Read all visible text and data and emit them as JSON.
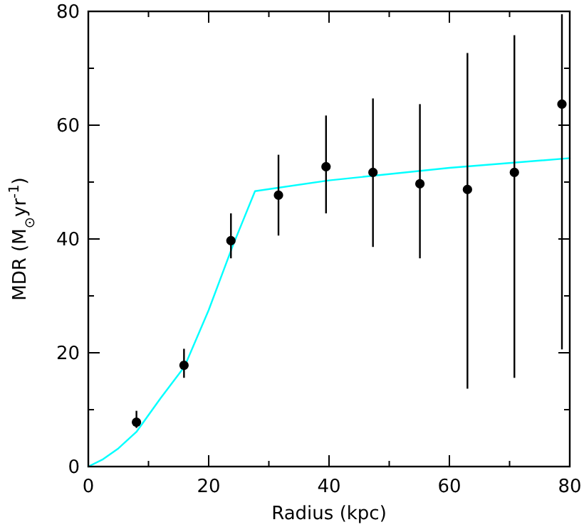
{
  "chart_data": {
    "type": "scatter",
    "xlabel": "Radius (kpc)",
    "ylabel": "MDR (M$_{⊙}$yr$^{-1}$)",
    "xlim": [
      0,
      80
    ],
    "ylim": [
      0,
      80
    ],
    "xticks": [
      0,
      {
        "value": 10,
        "label": null
      },
      20,
      {
        "value": 30,
        "label": null
      },
      40,
      {
        "value": 50,
        "label": null
      },
      60,
      {
        "value": 70,
        "label": null
      },
      80
    ],
    "yticks": [
      0,
      {
        "value": 10,
        "label": null
      },
      20,
      {
        "value": 30,
        "label": null
      },
      40,
      {
        "value": 50,
        "label": null
      },
      60,
      {
        "value": 70,
        "label": null
      },
      80
    ],
    "grid": false,
    "series": [
      {
        "type": "line",
        "color": "#00ffff",
        "x": [
          0,
          2.3,
          5,
          8,
          12,
          16,
          20,
          24,
          27.7,
          40,
          60,
          80
        ],
        "values": [
          0,
          1.2,
          3.2,
          6.1,
          12,
          17.6,
          27.5,
          38.8,
          48.4,
          50.3,
          52.5,
          54.2
        ]
      },
      {
        "color": "#000000",
        "marker": "circle",
        "x": [
          8,
          15.9,
          23.7,
          31.6,
          39.5,
          47.3,
          55.1,
          63,
          70.8,
          78.7
        ],
        "values": [
          7.8,
          17.8,
          39.7,
          47.7,
          52.7,
          51.7,
          49.7,
          48.7,
          51.7,
          63.7
        ],
        "errors": [
          [
            6.8,
            9.8
          ],
          [
            15.6,
            20.7
          ],
          [
            36.6,
            44.5
          ],
          [
            40.6,
            54.8
          ],
          [
            44.5,
            61.7
          ],
          [
            38.6,
            64.7
          ],
          [
            36.6,
            63.7
          ],
          [
            13.7,
            72.7
          ],
          [
            15.6,
            75.8
          ],
          [
            20.6,
            79.5
          ]
        ]
      }
    ]
  }
}
